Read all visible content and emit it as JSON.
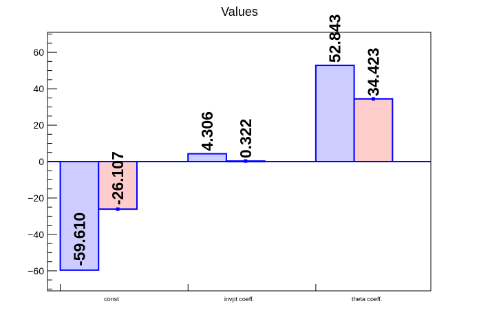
{
  "chart_data": {
    "type": "bar",
    "title": "Values",
    "xlabel": "",
    "ylabel": "",
    "categories": [
      "const",
      "invpt coeff.",
      "theta coeff."
    ],
    "series": [
      {
        "values": [
          -59.61,
          4.306,
          52.843
        ],
        "fill": "#ccccff",
        "stroke": "#0000ff"
      },
      {
        "values": [
          -26.107,
          0.322,
          34.423
        ],
        "fill": "#ffcccc",
        "stroke": "#0000ff"
      }
    ],
    "data_labels": [
      [
        "-59.610",
        "4.306",
        "52.843"
      ],
      [
        "-26.107",
        "0.322",
        "34.423"
      ]
    ],
    "ylim": [
      -71,
      71
    ],
    "yticks": [
      -60,
      -40,
      -20,
      0,
      20,
      40,
      60
    ],
    "ytick_labels": [
      "−60",
      "−40",
      "−20",
      "0",
      "20",
      "40",
      "60"
    ],
    "grid": false,
    "legend": "none"
  }
}
